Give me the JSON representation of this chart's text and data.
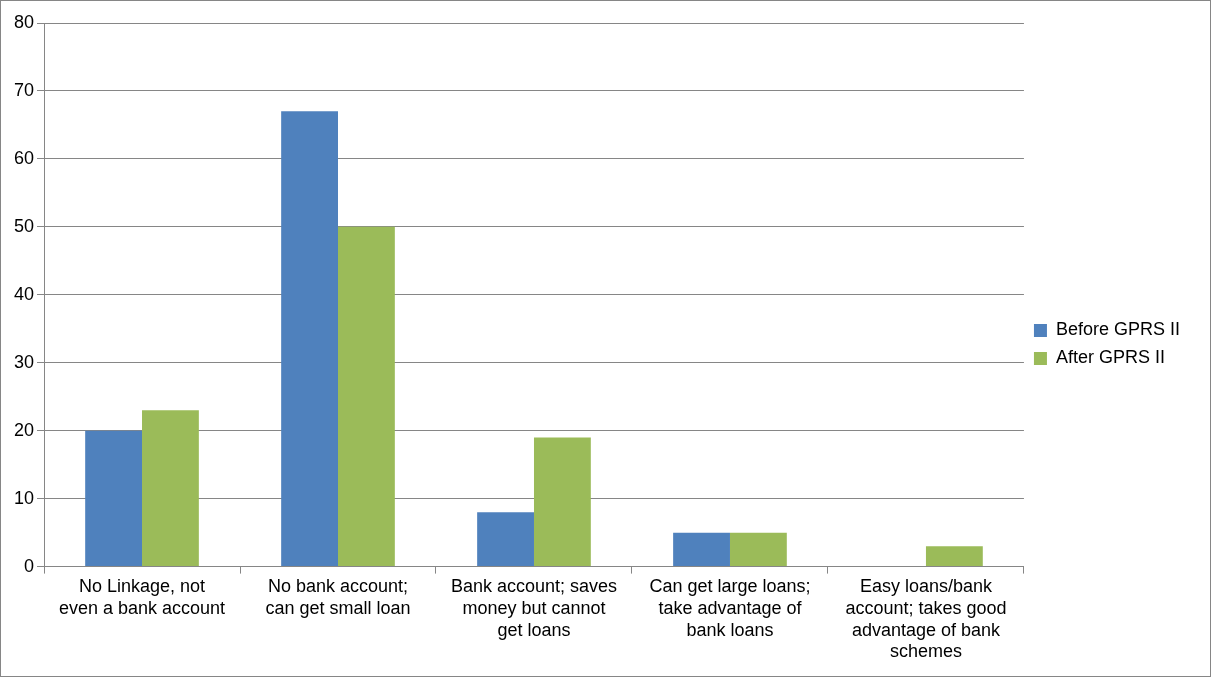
{
  "chart_data": {
    "type": "bar",
    "categories": [
      "No Linkage, not even a bank account",
      "No bank account; can get small loan",
      "Bank account; saves money but cannot get loans",
      "Can get large loans; take advantage of bank loans",
      "Easy loans/bank account; takes good advantage of bank schemes"
    ],
    "series": [
      {
        "name": "Before GPRS II",
        "color": "#4f81bd",
        "values": [
          20,
          67,
          8,
          5,
          0
        ]
      },
      {
        "name": "After GPRS II",
        "color": "#9bbb59",
        "values": [
          23,
          50,
          19,
          5,
          3
        ]
      }
    ],
    "ylim": [
      0,
      80
    ],
    "yticks": [
      0,
      10,
      20,
      30,
      40,
      50,
      60,
      70,
      80
    ],
    "grid": "y",
    "legend": "right"
  }
}
